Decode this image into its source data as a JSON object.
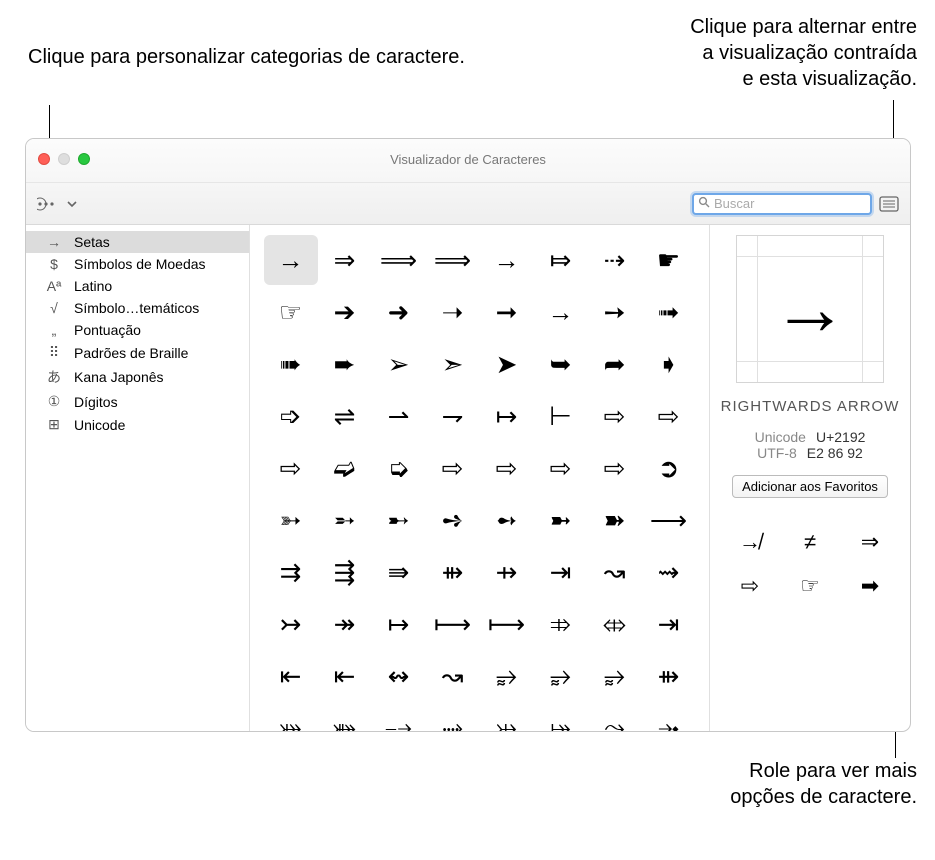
{
  "callouts": {
    "top_left": "Clique para personalizar categorias de caractere.",
    "top_right_1": "Clique para alternar entre",
    "top_right_2": "a visualização contraída",
    "top_right_3": "e esta visualização.",
    "bottom_1": "Role para ver mais",
    "bottom_2": "opções de caractere."
  },
  "window": {
    "title": "Visualizador de Caracteres",
    "search_placeholder": "Buscar"
  },
  "sidebar": {
    "items": [
      {
        "icon": "→",
        "label": "Setas",
        "selected": true
      },
      {
        "icon": "$",
        "label": "Símbolos de Moedas"
      },
      {
        "icon": "Aª",
        "label": "Latino"
      },
      {
        "icon": "√",
        "label": "Símbolo…temáticos"
      },
      {
        "icon": "„",
        "label": "Pontuação"
      },
      {
        "icon": "⠿",
        "label": "Padrões de Braille"
      },
      {
        "icon": "あ",
        "label": "Kana Japonês"
      },
      {
        "icon": "①",
        "label": "Dígitos"
      },
      {
        "icon": "⊞",
        "label": "Unicode"
      }
    ]
  },
  "grid": {
    "cells": [
      "→",
      "⇒",
      "⟹",
      "⟹",
      "→",
      "⤇",
      "⇢",
      "☛",
      "☞",
      "➔",
      "➜",
      "➝",
      "➞",
      "→",
      "➙",
      "➟",
      "➠",
      "➨",
      "➢",
      "➣",
      "➤",
      "➥",
      "➦",
      "➧",
      "➩",
      "⇌",
      "⇀",
      "⇁",
      "↦",
      "⊢",
      "⇨",
      "⇨",
      "⇨",
      "➫",
      "➭",
      "⇨",
      "⇨",
      "⇨",
      "⇨",
      "➲",
      "➳",
      "➵",
      "➸",
      "➺",
      "➻",
      "➼",
      "➽",
      "⟶",
      "⇉",
      "⇶",
      "⇛",
      "⇻",
      "⇸",
      "⇥",
      "↝",
      "⇝",
      "↣",
      "↠",
      "↦",
      "⟼",
      "⟼",
      "⤃",
      "⤄",
      "⇥",
      "⇤",
      "⇤",
      "↭",
      "↝",
      "⥵",
      "⥵",
      "⥵",
      "⇻",
      "⤗",
      "⤘",
      "⤍",
      "⤑",
      "⤔",
      "⤅",
      "⤳",
      "⤞"
    ],
    "selected_index": 0
  },
  "detail": {
    "preview_glyph": "→",
    "name": "RIGHTWARDS ARROW",
    "unicode_label": "Unicode",
    "unicode_value": "U+2192",
    "utf8_label": "UTF-8",
    "utf8_value": "E2 86 92",
    "favorite_button": "Adicionar aos Favoritos",
    "variants": [
      "↛",
      "≠",
      "⇒",
      "⇨",
      "☞",
      "➡"
    ]
  }
}
